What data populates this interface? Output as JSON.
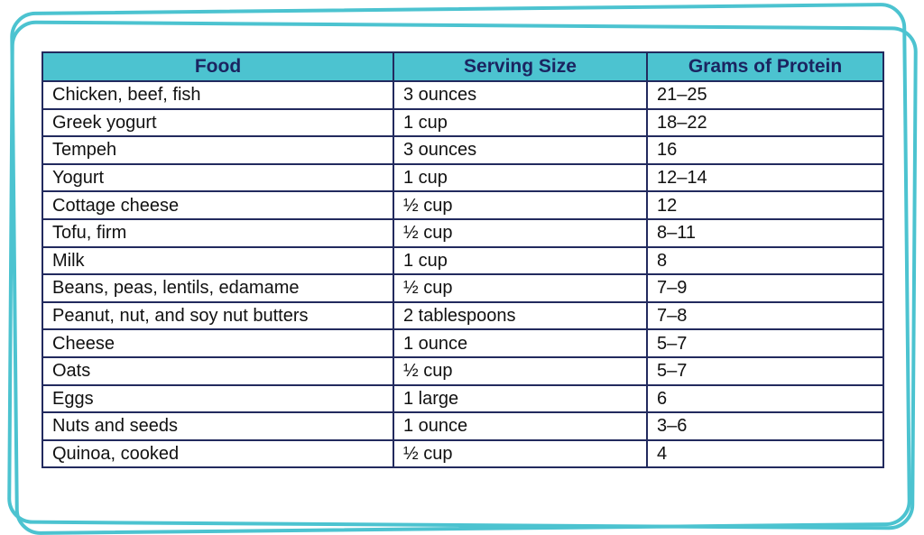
{
  "table": {
    "headers": [
      "Food",
      "Serving Size",
      "Grams of Protein"
    ],
    "rows": [
      [
        "Chicken, beef, fish",
        "3 ounces",
        "21–25"
      ],
      [
        "Greek yogurt",
        "1 cup",
        "18–22"
      ],
      [
        "Tempeh",
        "3 ounces",
        "16"
      ],
      [
        "Yogurt",
        "1 cup",
        "12–14"
      ],
      [
        "Cottage cheese",
        "½ cup",
        "12"
      ],
      [
        "Tofu, firm",
        "½ cup",
        "8–11"
      ],
      [
        "Milk",
        "1 cup",
        "8"
      ],
      [
        "Beans, peas, lentils, edamame",
        "½ cup",
        "7–9"
      ],
      [
        "Peanut, nut, and soy nut butters",
        "2 tablespoons",
        "7–8"
      ],
      [
        "Cheese",
        "1 ounce",
        "5–7"
      ],
      [
        "Oats",
        "½ cup",
        "5–7"
      ],
      [
        "Eggs",
        "1 large",
        "6"
      ],
      [
        "Nuts and seeds",
        "1 ounce",
        "3–6"
      ],
      [
        "Quinoa, cooked",
        "½ cup",
        "4"
      ]
    ]
  },
  "colors": {
    "accent": "#4cc3d0",
    "header_text": "#1b2460",
    "border": "#222a5e"
  }
}
